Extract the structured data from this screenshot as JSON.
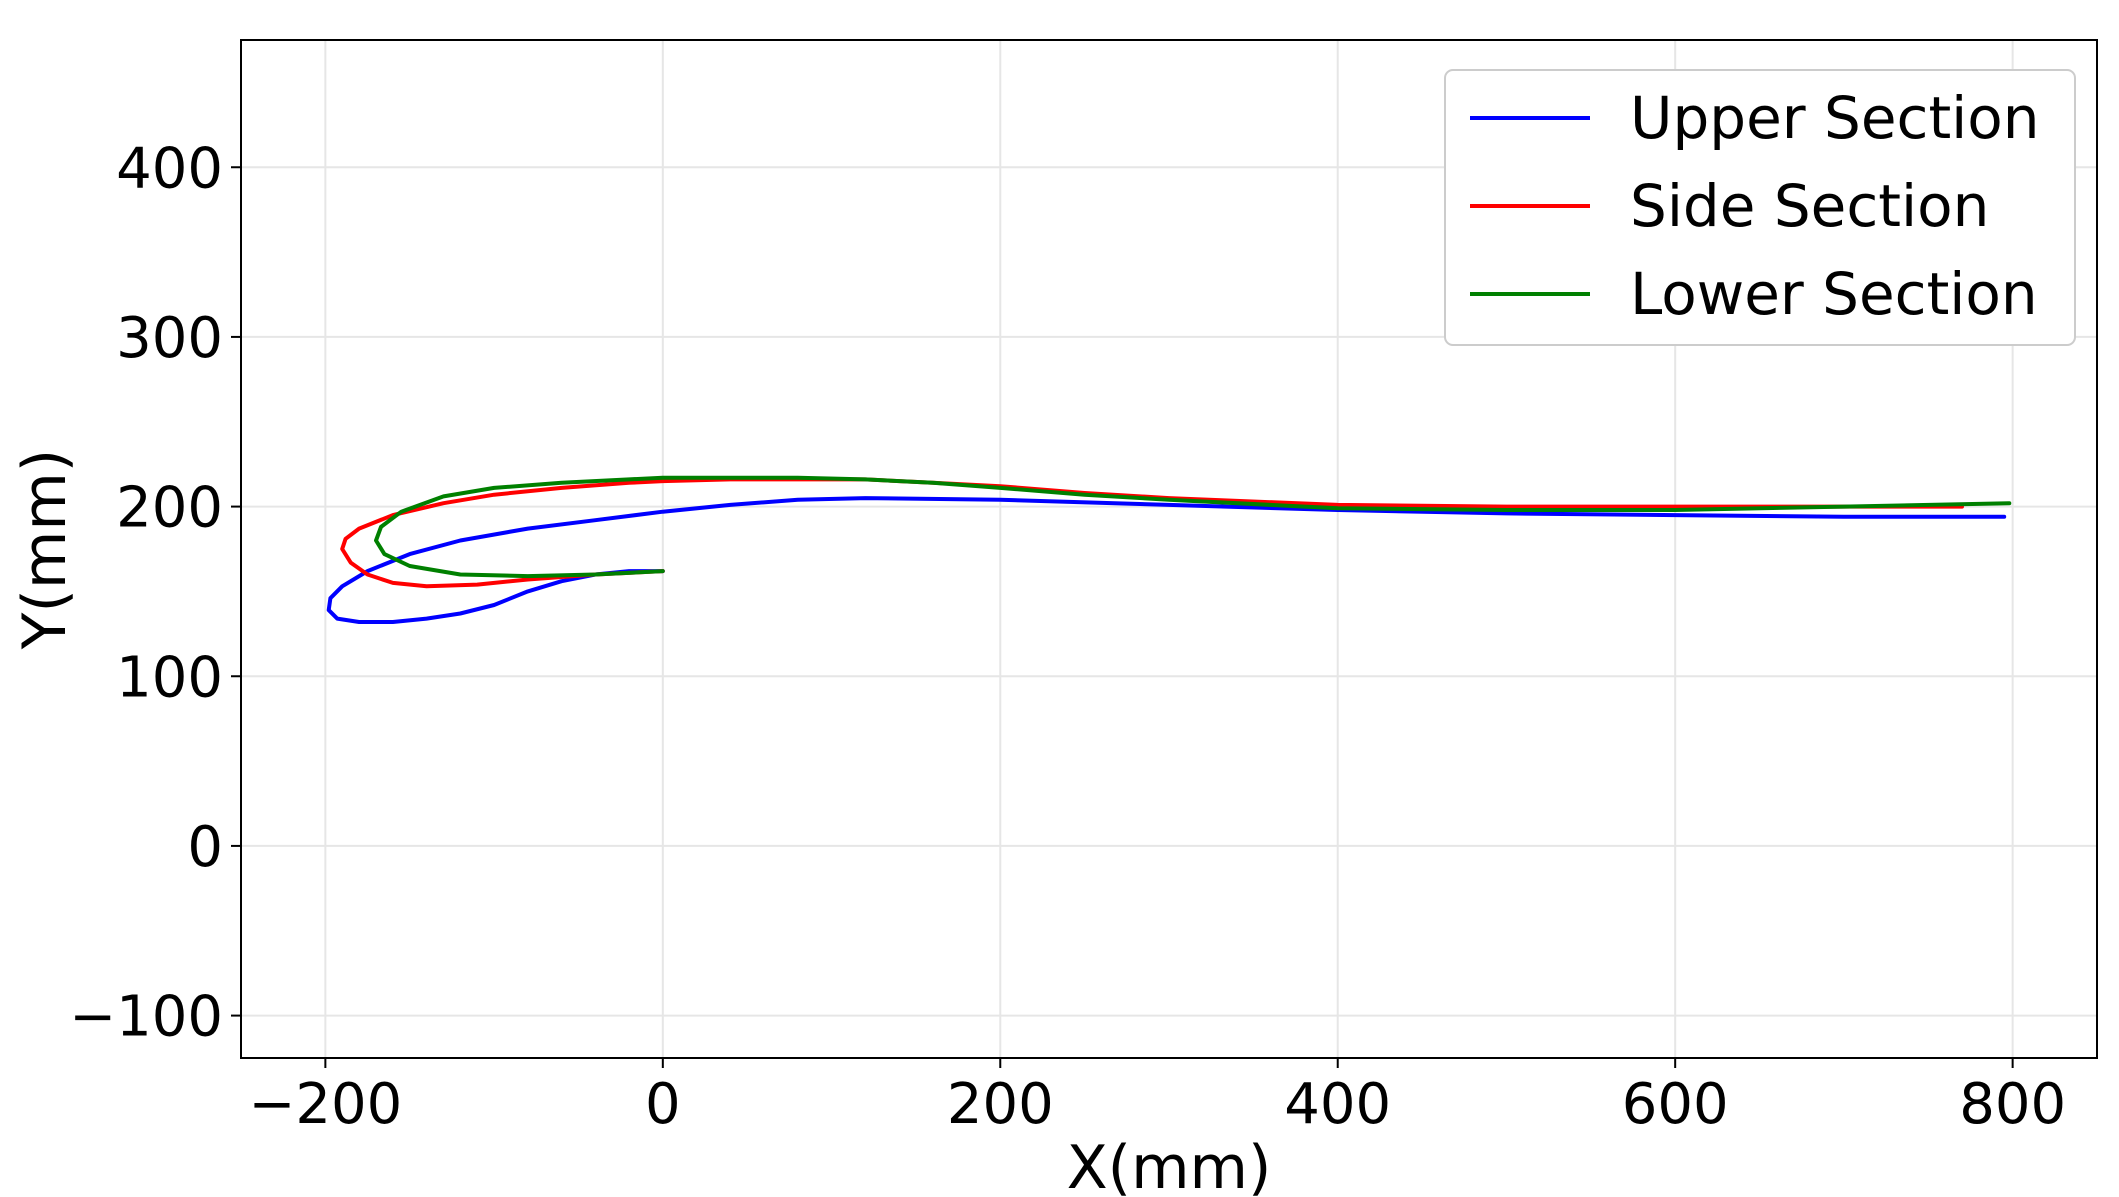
{
  "chart_data": {
    "type": "line",
    "xlabel": "X(mm)",
    "ylabel": "Y(mm)",
    "xlim": [
      -250,
      850
    ],
    "ylim": [
      -125,
      475
    ],
    "xticks": [
      -200,
      0,
      200,
      400,
      600,
      800
    ],
    "yticks": [
      -100,
      0,
      100,
      200,
      300,
      400
    ],
    "xtick_labels": [
      "−200",
      "0",
      "200",
      "400",
      "600",
      "800"
    ],
    "ytick_labels": [
      "−100",
      "0",
      "100",
      "200",
      "300",
      "400"
    ],
    "grid": true,
    "legend_position": "top-right",
    "series": [
      {
        "name": "Upper Section",
        "color": "#0000ff",
        "x": [
          0,
          -20,
          -40,
          -60,
          -80,
          -100,
          -120,
          -140,
          -160,
          -180,
          -193,
          -198,
          -197,
          -190,
          -175,
          -150,
          -120,
          -80,
          -40,
          0,
          40,
          80,
          120,
          200,
          300,
          400,
          500,
          600,
          700,
          795
        ],
        "y": [
          162,
          162,
          160,
          156,
          150,
          142,
          137,
          134,
          132,
          132,
          134,
          139,
          146,
          153,
          162,
          172,
          180,
          187,
          192,
          197,
          201,
          204,
          205,
          204,
          201,
          198,
          196,
          195,
          194,
          194
        ]
      },
      {
        "name": "Side Section",
        "color": "#ff0000",
        "x": [
          0,
          -40,
          -80,
          -110,
          -140,
          -160,
          -175,
          -185,
          -190,
          -188,
          -180,
          -160,
          -130,
          -100,
          -60,
          -20,
          0,
          40,
          80,
          120,
          160,
          200,
          250,
          300,
          400,
          500,
          600,
          700,
          770
        ],
        "y": [
          162,
          160,
          157,
          154,
          153,
          155,
          160,
          167,
          175,
          181,
          187,
          195,
          202,
          207,
          211,
          214,
          215,
          216,
          216,
          216,
          214,
          212,
          208,
          205,
          201,
          200,
          200,
          200,
          200
        ]
      },
      {
        "name": "Lower Section",
        "color": "#008000",
        "x": [
          0,
          -40,
          -80,
          -120,
          -150,
          -165,
          -170,
          -167,
          -155,
          -130,
          -100,
          -60,
          -20,
          0,
          40,
          80,
          120,
          160,
          200,
          250,
          300,
          400,
          500,
          600,
          700,
          798
        ],
        "y": [
          162,
          160,
          159,
          160,
          165,
          172,
          180,
          188,
          197,
          206,
          211,
          214,
          216,
          217,
          217,
          217,
          216,
          214,
          211,
          207,
          204,
          199,
          198,
          198,
          200,
          202
        ]
      }
    ]
  }
}
